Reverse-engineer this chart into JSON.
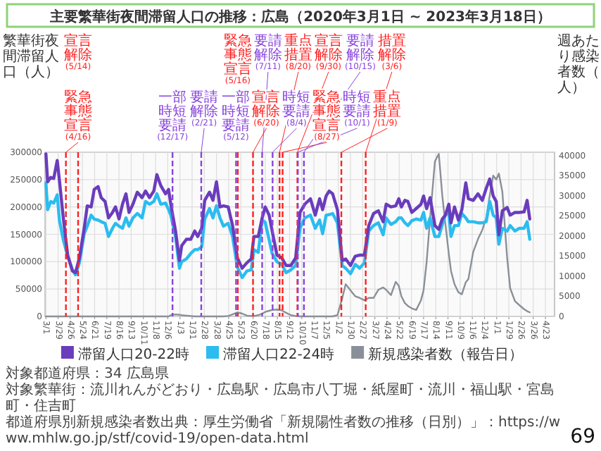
{
  "chart_data": {
    "type": "line",
    "title": "主要繁華街夜間滞留人口の推移：広島（2020年3月1日 ~ 2023年3月18日）",
    "ylabel": "繁華街夜間滞留人口（人）",
    "y2label": "週あたり感染者数（人）",
    "x": [
      "2020-03-01",
      "2020-03-05",
      "2020-03-12",
      "2020-03-19",
      "2020-03-27",
      "2020-04-01",
      "2020-04-10",
      "2020-04-20",
      "2020-05-01",
      "2020-05-08",
      "2020-05-17",
      "2020-05-28",
      "2020-06-04",
      "2020-06-13",
      "2020-06-20",
      "2020-06-29",
      "2020-07-06",
      "2020-07-15",
      "2020-07-23",
      "2020-08-01",
      "2020-08-08",
      "2020-08-16",
      "2020-08-24",
      "2020-09-01",
      "2020-09-08",
      "2020-09-17",
      "2020-09-27",
      "2020-10-08",
      "2020-10-16",
      "2020-10-25",
      "2020-11-04",
      "2020-11-11",
      "2020-11-20",
      "2020-12-01",
      "2020-12-08",
      "2020-12-13",
      "2020-12-24",
      "2021-01-02",
      "2021-01-07",
      "2021-01-18",
      "2021-01-28",
      "2021-02-06",
      "2021-02-13",
      "2021-02-22",
      "2021-03-01",
      "2021-03-12",
      "2021-03-20",
      "2021-03-28",
      "2021-04-05",
      "2021-04-13",
      "2021-04-24",
      "2021-05-04",
      "2021-05-15",
      "2021-05-26",
      "2021-06-06",
      "2021-06-16",
      "2021-06-22",
      "2021-07-02",
      "2021-07-11",
      "2021-07-18",
      "2021-07-27",
      "2021-08-03",
      "2021-08-14",
      "2021-08-25",
      "2021-09-04",
      "2021-09-15",
      "2021-09-26",
      "2021-10-06",
      "2021-10-17",
      "2021-10-30",
      "2021-11-10",
      "2021-11-20",
      "2021-11-27",
      "2021-12-05",
      "2021-12-12",
      "2021-12-20",
      "2021-12-31",
      "2022-01-11",
      "2022-01-19",
      "2022-01-30",
      "2022-02-10",
      "2022-02-20",
      "2022-03-03",
      "2022-03-13",
      "2022-03-24",
      "2022-04-04",
      "2022-04-15",
      "2022-04-22",
      "2022-05-03",
      "2022-05-14",
      "2022-05-21",
      "2022-05-27",
      "2022-06-04",
      "2022-06-11",
      "2022-06-20",
      "2022-06-30",
      "2022-07-11",
      "2022-07-17",
      "2022-07-24",
      "2022-08-01",
      "2022-08-12",
      "2022-08-21",
      "2022-08-29",
      "2022-09-05",
      "2022-09-13",
      "2022-09-18",
      "2022-09-26",
      "2022-10-05",
      "2022-10-13",
      "2022-10-22",
      "2022-10-28",
      "2022-11-08",
      "2022-11-19",
      "2022-11-29",
      "2022-12-08",
      "2022-12-16",
      "2022-12-24",
      "2022-12-31",
      "2023-01-06",
      "2023-01-14",
      "2023-01-25",
      "2023-02-01",
      "2023-02-12",
      "2023-02-22",
      "2023-03-05",
      "2023-03-12",
      "2023-03-18"
    ],
    "series": [
      {
        "name": "滞留人口20-22時",
        "color": "#6a3cbc",
        "values": [
          297000,
          246000,
          254000,
          252000,
          285000,
          249000,
          180000,
          112000,
          83000,
          80000,
          107000,
          161000,
          202000,
          200000,
          232000,
          237000,
          217000,
          210000,
          180000,
          190000,
          200000,
          178000,
          205000,
          224000,
          190000,
          205000,
          227000,
          217000,
          229000,
          217000,
          229000,
          259000,
          239000,
          224000,
          232000,
          205000,
          156000,
          102000,
          129000,
          141000,
          141000,
          156000,
          146000,
          161000,
          212000,
          227000,
          212000,
          246000,
          200000,
          202000,
          200000,
          166000,
          107000,
          88000,
          98000,
          105000,
          146000,
          146000,
          180000,
          200000,
          185000,
          156000,
          112000,
          107000,
          93000,
          93000,
          107000,
          190000,
          205000,
          215000,
          185000,
          215000,
          195000,
          220000,
          229000,
          224000,
          195000,
          102000,
          105000,
          93000,
          110000,
          112000,
          112000,
          166000,
          188000,
          193000,
          173000,
          205000,
          200000,
          202000,
          215000,
          200000,
          212000,
          210000,
          190000,
          197000,
          205000,
          220000,
          197000,
          217000,
          166000,
          159000,
          178000,
          185000,
          205000,
          171000,
          200000,
          176000,
          195000,
          244000,
          215000,
          212000,
          224000,
          212000,
          234000,
          251000,
          220000,
          210000,
          149000,
          193000,
          199000,
          185000,
          190000,
          190000,
          191000,
          212000,
          178000
        ]
      },
      {
        "name": "滞留人口22-24時",
        "color": "#2bbcf0",
        "values": [
          244000,
          195000,
          210000,
          207000,
          222000,
          176000,
          140000,
          110000,
          85000,
          76000,
          98000,
          151000,
          165000,
          185000,
          178000,
          176000,
          173000,
          170000,
          146000,
          161000,
          170000,
          165000,
          161000,
          180000,
          165000,
          180000,
          188000,
          180000,
          210000,
          205000,
          210000,
          224000,
          205000,
          207000,
          195000,
          185000,
          145000,
          88000,
          100000,
          105000,
          115000,
          122000,
          122000,
          127000,
          178000,
          197000,
          180000,
          202000,
          180000,
          165000,
          170000,
          146000,
          90000,
          71000,
          83000,
          85000,
          122000,
          117000,
          176000,
          172000,
          140000,
          115000,
          100000,
          95000,
          80000,
          85000,
          93000,
          161000,
          180000,
          185000,
          161000,
          176000,
          151000,
          185000,
          186000,
          188000,
          171000,
          93000,
          88000,
          78000,
          95000,
          88000,
          98000,
          156000,
          166000,
          171000,
          149000,
          180000,
          168000,
          173000,
          180000,
          180000,
          171000,
          166000,
          175000,
          178000,
          176000,
          190000,
          161000,
          180000,
          146000,
          146000,
          168000,
          185000,
          190000,
          146000,
          166000,
          166000,
          188000,
          180000,
          173000,
          173000,
          171000,
          171000,
          173000,
          210000,
          185000,
          180000,
          132000,
          161000,
          156000,
          166000,
          156000,
          161000,
          161000,
          173000,
          141000
        ]
      },
      {
        "name": "新規感染者数（報告日）",
        "color": "#8a9099",
        "axis": "y2",
        "values": [
          0,
          0,
          0,
          0,
          0,
          0,
          0,
          0,
          0,
          0,
          0,
          0,
          0,
          0,
          0,
          0,
          0,
          0,
          0,
          0,
          0,
          0,
          0,
          0,
          0,
          0,
          0,
          0,
          0,
          0,
          0,
          0,
          0,
          0,
          0,
          300,
          500,
          400,
          300,
          200,
          100,
          0,
          0,
          0,
          0,
          0,
          0,
          0,
          0,
          0,
          100,
          500,
          1000,
          700,
          200,
          100,
          100,
          300,
          700,
          1100,
          1400,
          1600,
          1700,
          1500,
          900,
          300,
          100,
          0,
          0,
          0,
          0,
          0,
          0,
          0,
          0,
          0,
          300,
          4500,
          8000,
          6500,
          5000,
          4600,
          4000,
          4600,
          4600,
          6600,
          7200,
          6600,
          5300,
          8600,
          7600,
          5000,
          3300,
          2600,
          2000,
          1600,
          4000,
          6500,
          13500,
          24500,
          38500,
          40400,
          30000,
          23000,
          15500,
          11300,
          8000,
          6000,
          5500,
          8500,
          9300,
          16000,
          19200,
          21500,
          24500,
          30000,
          35000,
          34000,
          35500,
          31000,
          14600,
          7000,
          3800,
          2800,
          1800,
          1300,
          1000
        ]
      }
    ],
    "xlim": [
      "2020-02-28",
      "2023-05-14"
    ],
    "xticks": [
      {
        "value": "2020-03-01",
        "label": "3/1"
      },
      {
        "value": "2020-03-29",
        "label": "3/29"
      },
      {
        "value": "2020-04-26",
        "label": "4/26"
      },
      {
        "value": "2020-05-24",
        "label": "5/24"
      },
      {
        "value": "2020-06-21",
        "label": "6/21"
      },
      {
        "value": "2020-07-19",
        "label": "7/19"
      },
      {
        "value": "2020-08-16",
        "label": "8/16"
      },
      {
        "value": "2020-09-13",
        "label": "9/13"
      },
      {
        "value": "2020-10-11",
        "label": "10/11"
      },
      {
        "value": "2020-11-08",
        "label": "11/8"
      },
      {
        "value": "2020-12-06",
        "label": "12/6"
      },
      {
        "value": "2021-01-03",
        "label": "1/3"
      },
      {
        "value": "2021-01-31",
        "label": "1/31"
      },
      {
        "value": "2021-02-28",
        "label": "2/28"
      },
      {
        "value": "2021-03-28",
        "label": "3/28"
      },
      {
        "value": "2021-04-25",
        "label": "4/25"
      },
      {
        "value": "2021-05-23",
        "label": "5/23"
      },
      {
        "value": "2021-06-20",
        "label": "6/20"
      },
      {
        "value": "2021-07-18",
        "label": "7/18"
      },
      {
        "value": "2021-08-15",
        "label": "8/15"
      },
      {
        "value": "2021-09-12",
        "label": "9/12"
      },
      {
        "value": "2021-10-10",
        "label": "10/10"
      },
      {
        "value": "2021-11-07",
        "label": "11/7"
      },
      {
        "value": "2021-12-05",
        "label": "12/5"
      },
      {
        "value": "2022-01-02",
        "label": "1/2"
      },
      {
        "value": "2022-01-30",
        "label": "1/30"
      },
      {
        "value": "2022-02-27",
        "label": "2/27"
      },
      {
        "value": "2022-03-27",
        "label": "3/27"
      },
      {
        "value": "2022-04-24",
        "label": "4/24"
      },
      {
        "value": "2022-05-22",
        "label": "5/22"
      },
      {
        "value": "2022-06-19",
        "label": "6/19"
      },
      {
        "value": "2022-07-17",
        "label": "7/17"
      },
      {
        "value": "2022-08-14",
        "label": "8/14"
      },
      {
        "value": "2022-09-11",
        "label": "9/11"
      },
      {
        "value": "2022-10-09",
        "label": "10/9"
      },
      {
        "value": "2022-11-06",
        "label": "11/6"
      },
      {
        "value": "2022-12-04",
        "label": "12/4"
      },
      {
        "value": "2023-01-01",
        "label": "1/1"
      },
      {
        "value": "2023-01-29",
        "label": "1/29"
      },
      {
        "value": "2023-02-26",
        "label": "2/26"
      },
      {
        "value": "2023-03-26",
        "label": "3/26"
      },
      {
        "value": "2023-04-23",
        "label": "4/23"
      }
    ],
    "ylim": [
      0,
      300000
    ],
    "yticks": [
      0,
      50000,
      100000,
      150000,
      200000,
      250000,
      300000
    ],
    "y2lim": [
      0,
      40800
    ],
    "y2ticks": [
      0,
      5000,
      10000,
      15000,
      20000,
      25000,
      30000,
      35000,
      40000
    ],
    "ref_lines": [
      {
        "axis": "x",
        "value": "2020-04-16",
        "label": "緊急事態宣言(4/16)",
        "color": "#ff2020",
        "line_style": "dashed"
      },
      {
        "axis": "x",
        "value": "2020-05-14",
        "label": "宣言解除(5/14)",
        "color": "#ff2020",
        "line_style": "dashed"
      },
      {
        "axis": "x",
        "value": "2020-12-17",
        "label": "一部時短要請(12/17)",
        "color": "#8844dd",
        "line_style": "dashed"
      },
      {
        "axis": "x",
        "value": "2021-02-21",
        "label": "要請解除(2/21)",
        "color": "#8844dd",
        "line_style": "dashed"
      },
      {
        "axis": "x",
        "value": "2021-05-12",
        "label": "一部時短要請(5/12)",
        "color": "#8844dd",
        "line_style": "dashed"
      },
      {
        "axis": "x",
        "value": "2021-05-16",
        "label": "緊急事態宣言(5/16)",
        "color": "#ff2020",
        "line_style": "dashed"
      },
      {
        "axis": "x",
        "value": "2021-06-20",
        "label": "宣言解除(6/20)",
        "color": "#ff2020",
        "line_style": "dashed"
      },
      {
        "axis": "x",
        "value": "2021-07-11",
        "label": "要請解除(7/11)",
        "color": "#8844dd",
        "line_style": "dashed"
      },
      {
        "axis": "x",
        "value": "2021-08-04",
        "label": "時短要請(8/4)",
        "color": "#8844dd",
        "line_style": "dashed"
      },
      {
        "axis": "x",
        "value": "2021-08-20",
        "label": "重点措置(8/20)",
        "color": "#ff2020",
        "line_style": "dashed"
      },
      {
        "axis": "x",
        "value": "2021-08-27",
        "label": "緊急事態宣言(8/27)",
        "color": "#ff2020",
        "line_style": "dashed"
      },
      {
        "axis": "x",
        "value": "2021-09-30",
        "label": "宣言解除(9/30)",
        "color": "#ff2020",
        "line_style": "dashed"
      },
      {
        "axis": "x",
        "value": "2021-10-01",
        "label": "時短要請(10/1)",
        "color": "#8844dd",
        "line_style": "dashed"
      },
      {
        "axis": "x",
        "value": "2021-10-15",
        "label": "要請解除(10/15)",
        "color": "#8844dd",
        "line_style": "dashed"
      },
      {
        "axis": "x",
        "value": "2022-01-09",
        "label": "重点措置(1/9)",
        "color": "#ff2020",
        "line_style": "dashed"
      },
      {
        "axis": "x",
        "value": "2022-03-06",
        "label": "措置解除(3/6)",
        "color": "#ff2020",
        "line_style": "dashed"
      }
    ],
    "grid": true,
    "legend": "bottom",
    "annotations": [
      "対象都道府県：34 広島県",
      "対象繁華街：流川れんがどおり・広島駅・広島市八丁堀・紙屋町・流川・福山駅・宮島町・住吉町",
      "都道府県別新規感染者数出典：厚生労働省「新規陽性者数の推移（日別）」：https://www.mhlw.go.jp/stf/covid-19/open-data.html",
      "69"
    ]
  }
}
